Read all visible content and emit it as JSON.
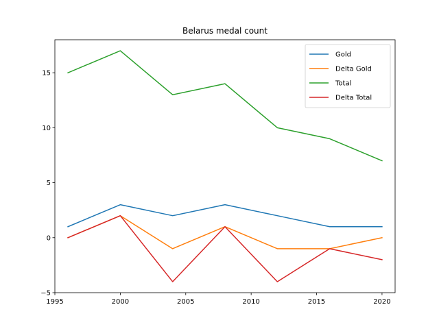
{
  "chart_data": {
    "type": "line",
    "title": "Belarus medal count",
    "xlabel": "",
    "ylabel": "",
    "x": [
      1996,
      2000,
      2004,
      2008,
      2012,
      2016,
      2020
    ],
    "xlim": [
      1995,
      2021
    ],
    "ylim": [
      -5,
      18
    ],
    "xticks": [
      1995,
      2000,
      2005,
      2010,
      2015,
      2020
    ],
    "yticks": [
      -5,
      0,
      5,
      10,
      15
    ],
    "grid": false,
    "legend_position": "top-right",
    "series": [
      {
        "name": "Gold",
        "color": "#1f77b4",
        "values": [
          1,
          3,
          2,
          3,
          2,
          1,
          1
        ]
      },
      {
        "name": "Delta Gold",
        "color": "#ff7f0e",
        "values": [
          0,
          2,
          -1,
          1,
          -1,
          -1,
          0
        ]
      },
      {
        "name": "Total",
        "color": "#2ca02c",
        "values": [
          15,
          17,
          13,
          14,
          10,
          9,
          7
        ]
      },
      {
        "name": "Delta Total",
        "color": "#d62728",
        "values": [
          0,
          2,
          -4,
          1,
          -4,
          -1,
          -2
        ]
      }
    ]
  }
}
